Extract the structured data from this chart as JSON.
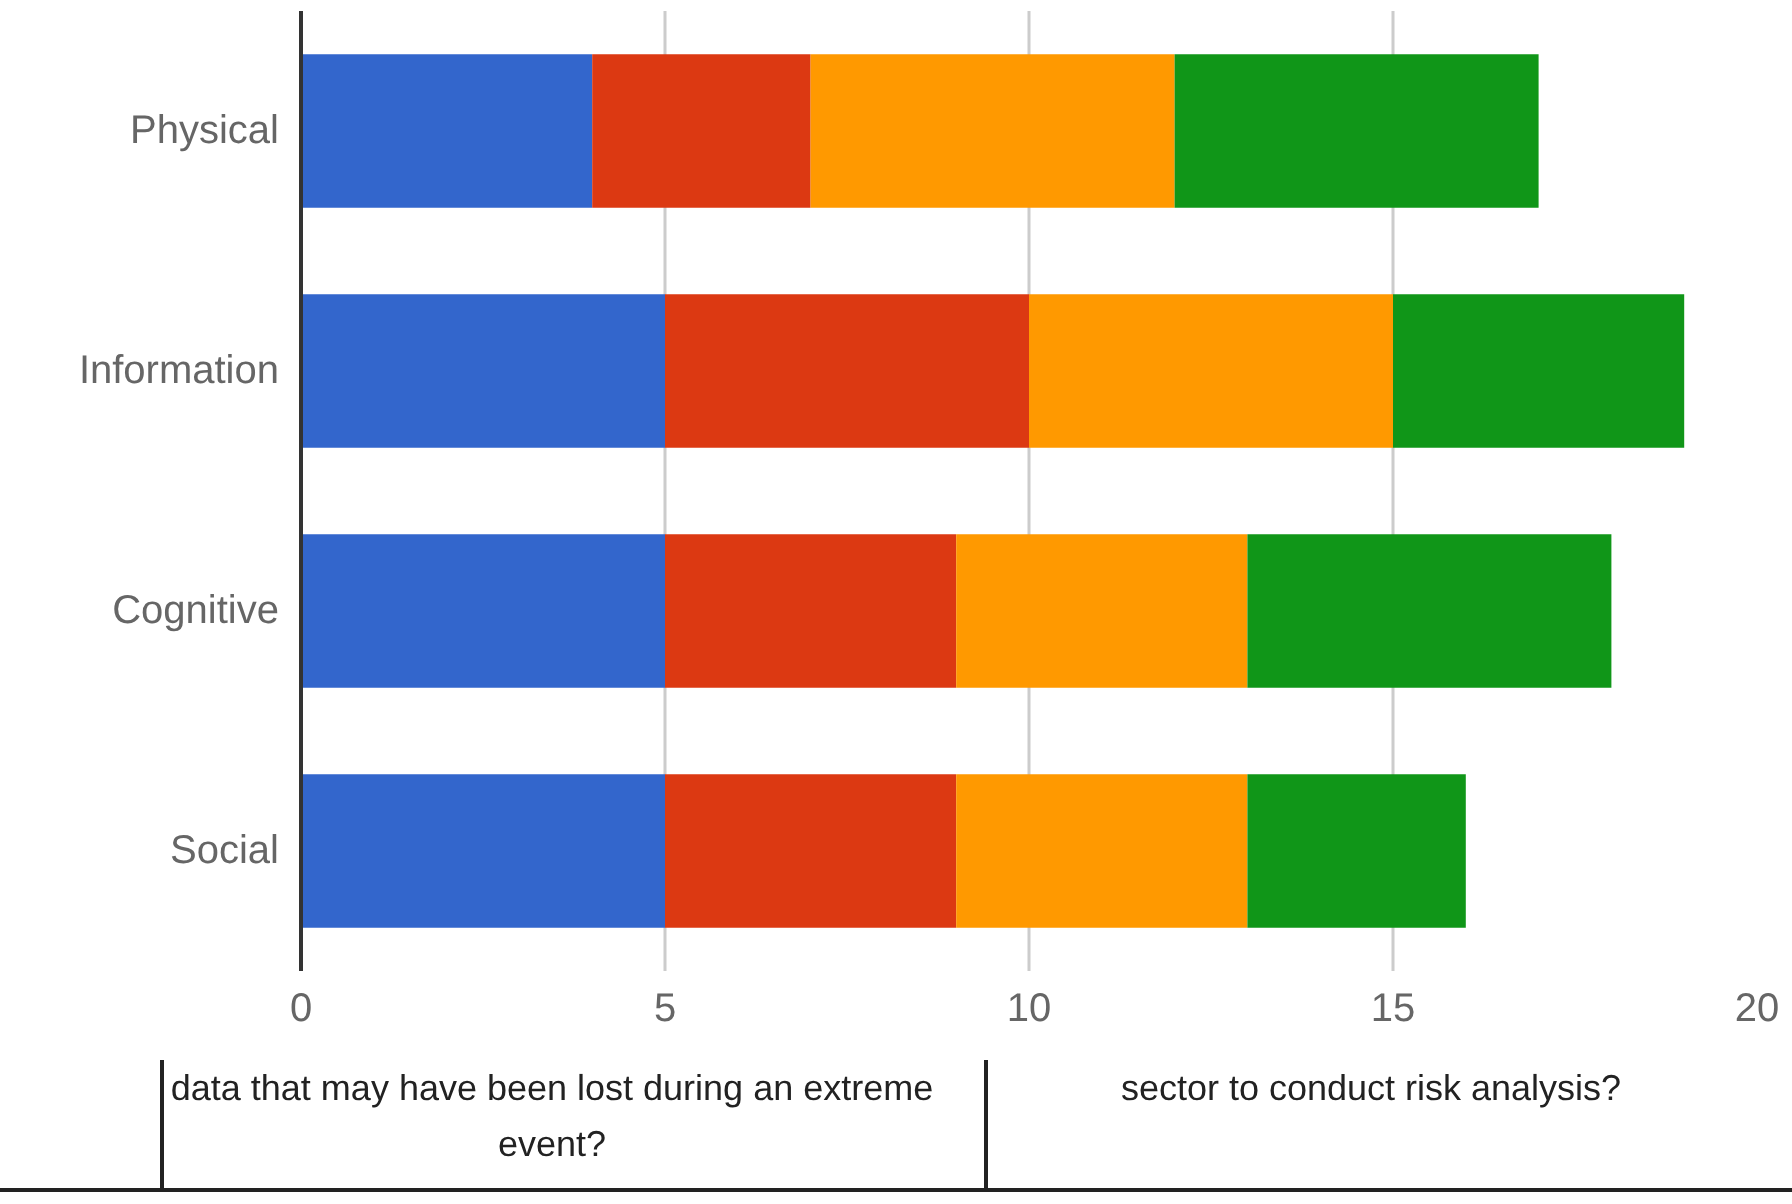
{
  "chart_data": {
    "type": "bar",
    "orientation": "horizontal",
    "stacked": true,
    "categories": [
      "Physical",
      "Information",
      "Cognitive",
      "Social"
    ],
    "series": [
      {
        "color": "#3366cc",
        "values": [
          4,
          5,
          5,
          5
        ]
      },
      {
        "color": "#dc3912",
        "values": [
          3,
          5,
          4,
          4
        ]
      },
      {
        "color": "#ff9900",
        "values": [
          5,
          5,
          4,
          4
        ]
      },
      {
        "color": "#109618",
        "values": [
          5,
          4,
          5,
          3
        ]
      }
    ],
    "xlim": [
      0,
      20
    ],
    "xticks": [
      0,
      5,
      10,
      15,
      20
    ],
    "grid": "x",
    "annotations": [
      "data that may have been lost during an extreme event?",
      "sector to conduct risk analysis?"
    ]
  }
}
